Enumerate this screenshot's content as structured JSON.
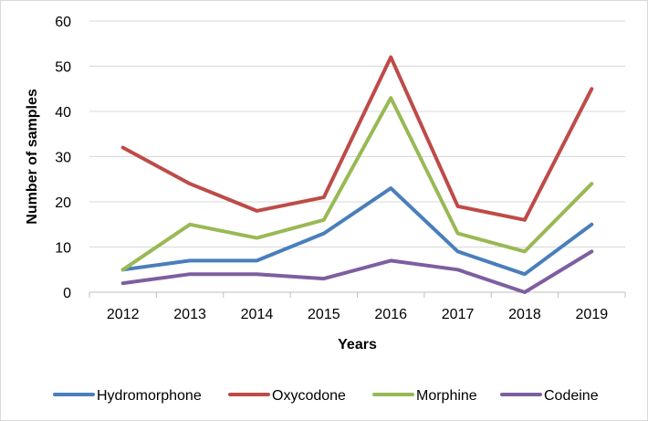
{
  "chart_data": {
    "type": "line",
    "title": "",
    "xlabel": "Years",
    "ylabel": "Number of samples",
    "categories": [
      "2012",
      "2013",
      "2014",
      "2015",
      "2016",
      "2017",
      "2018",
      "2019"
    ],
    "ylim": [
      0,
      60
    ],
    "yticks": [
      0,
      10,
      20,
      30,
      40,
      50,
      60
    ],
    "grid": true,
    "legend_position": "bottom",
    "series": [
      {
        "name": "Hydromorphone",
        "color": "#4a7ebb",
        "values": [
          5,
          7,
          7,
          13,
          23,
          9,
          4,
          15
        ]
      },
      {
        "name": "Oxycodone",
        "color": "#be4b48",
        "values": [
          32,
          24,
          18,
          21,
          52,
          19,
          16,
          45
        ]
      },
      {
        "name": "Morphine",
        "color": "#98b954",
        "values": [
          5,
          15,
          12,
          16,
          43,
          13,
          9,
          24
        ]
      },
      {
        "name": "Codeine",
        "color": "#7d5fa0",
        "values": [
          2,
          4,
          4,
          3,
          7,
          5,
          0,
          9
        ]
      }
    ]
  }
}
